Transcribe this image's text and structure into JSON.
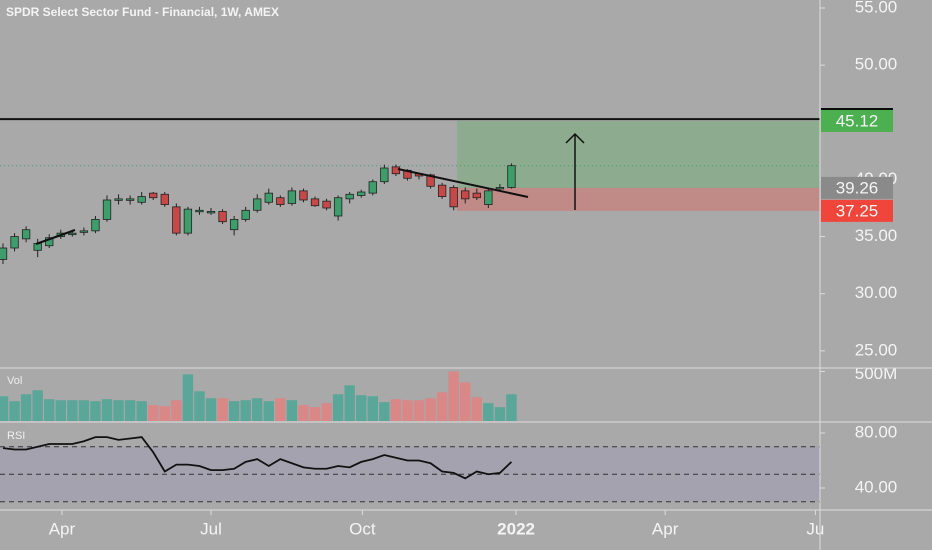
{
  "header": {
    "title": "SPDR Select Sector Fund - Financial, 1W, AMEX"
  },
  "chart_data": [
    {
      "type": "candlestick",
      "xlim": [
        -0.26,
        70.7
      ],
      "xticks": [
        {
          "value": 5.1,
          "label": "Apr"
        },
        {
          "value": 18,
          "label": "Jul"
        },
        {
          "value": 31.1,
          "label": "Oct"
        },
        {
          "value": 44.4,
          "label": "2022"
        },
        {
          "value": 57.3,
          "label": "Apr"
        },
        {
          "value": 70.3,
          "label": "Ju"
        }
      ],
      "ylim": [
        23.5,
        55.7
      ],
      "yticks": [
        {
          "value": 25,
          "label": "25.00"
        },
        {
          "value": 30,
          "label": "30.00"
        },
        {
          "value": 35,
          "label": "35.00"
        },
        {
          "value": 40,
          "label": "40.00"
        },
        {
          "value": 50,
          "label": "50.00"
        },
        {
          "value": 55,
          "label": "55.00"
        }
      ],
      "open": [
        33.0,
        34.0,
        34.8,
        33.8,
        34.2,
        35.0,
        35.3,
        35.4,
        35.5,
        36.5,
        38.3,
        38.2,
        38.0,
        38.8,
        38.7,
        37.6,
        35.3,
        37.3,
        37.2,
        37.2,
        35.6,
        36.5,
        37.3,
        38.0,
        38.4,
        37.9,
        39.0,
        38.3,
        38.1,
        36.8,
        38.3,
        38.6,
        38.8,
        39.8,
        41.1,
        40.8,
        40.5,
        40.4,
        39.5,
        39.3,
        39.0,
        38.8,
        37.8,
        39.3,
        39.3
      ],
      "high": [
        34.4,
        35.3,
        35.9,
        34.8,
        35.2,
        35.6,
        35.6,
        35.8,
        36.8,
        38.6,
        38.7,
        38.6,
        38.9,
        38.9,
        38.9,
        37.9,
        37.6,
        37.6,
        37.5,
        37.4,
        36.8,
        37.6,
        38.7,
        39.2,
        38.6,
        39.3,
        39.2,
        38.5,
        38.3,
        38.6,
        38.9,
        39.1,
        40.0,
        41.3,
        41.3,
        40.9,
        40.6,
        40.5,
        39.7,
        39.5,
        39.3,
        39.2,
        39.2,
        39.6,
        41.4
      ],
      "low": [
        32.6,
        33.7,
        34.5,
        33.2,
        34.0,
        34.8,
        35.0,
        35.1,
        35.3,
        36.3,
        37.8,
        37.8,
        37.8,
        38.2,
        37.6,
        35.1,
        35.1,
        36.9,
        36.9,
        36.1,
        35.1,
        36.3,
        37.1,
        37.8,
        37.6,
        37.7,
        38.0,
        37.6,
        37.3,
        36.4,
        37.9,
        38.4,
        38.6,
        39.6,
        40.3,
        39.9,
        40.0,
        39.2,
        38.3,
        37.3,
        37.9,
        38.2,
        37.5,
        39.0,
        39.2
      ],
      "close": [
        34.0,
        35.0,
        35.6,
        34.4,
        34.9,
        35.3,
        35.3,
        35.5,
        36.5,
        38.2,
        38.3,
        38.3,
        38.5,
        38.4,
        37.8,
        35.3,
        37.4,
        37.3,
        37.2,
        36.3,
        36.5,
        37.3,
        38.3,
        38.8,
        37.8,
        39.0,
        38.2,
        37.7,
        37.5,
        38.4,
        38.7,
        38.9,
        39.8,
        41.0,
        40.5,
        40.1,
        40.3,
        39.4,
        38.5,
        37.6,
        38.3,
        38.4,
        39.0,
        39.3,
        41.2
      ],
      "up_color": "#3d9e6c",
      "down_color": "#c64848",
      "horizontal_line": 45.28,
      "position": {
        "start": 39.3,
        "target": 45.12,
        "entry": 39.26,
        "stop": 37.25
      }
    },
    {
      "type": "bar",
      "label": "Vol",
      "values": [
        250,
        200,
        270,
        310,
        220,
        210,
        210,
        210,
        200,
        220,
        210,
        210,
        200,
        160,
        150,
        210,
        470,
        300,
        230,
        230,
        200,
        210,
        230,
        200,
        230,
        210,
        160,
        140,
        180,
        270,
        360,
        260,
        250,
        190,
        220,
        210,
        210,
        230,
        290,
        500,
        390,
        240,
        180,
        140,
        270
      ],
      "ylim": [
        0,
        535
      ],
      "yticks": [
        {
          "value": 500,
          "label": "500M"
        }
      ],
      "up_color": "#5aa698",
      "down_color": "#d98787"
    },
    {
      "type": "line",
      "label": "RSI",
      "values": [
        69,
        68,
        68,
        70,
        72,
        72,
        72,
        74,
        77,
        77,
        75,
        76,
        77,
        66,
        52,
        57,
        57,
        56,
        53,
        53,
        54,
        59,
        61,
        56,
        61,
        58,
        55,
        54,
        54,
        56,
        55,
        59,
        61,
        64,
        62,
        60,
        60,
        58,
        52,
        51,
        47,
        52,
        50,
        51,
        59
      ],
      "ylim": [
        24,
        88
      ],
      "yticks": [
        {
          "value": 80,
          "label": "80.00"
        },
        {
          "value": 40,
          "label": "40.00"
        }
      ],
      "levels": [
        70,
        50,
        30
      ],
      "color": "#111111"
    }
  ]
}
